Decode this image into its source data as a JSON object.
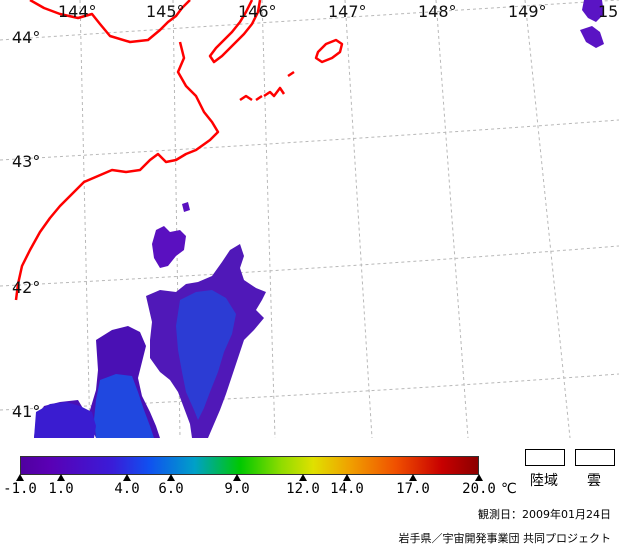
{
  "map": {
    "longitude_labels": [
      "144°",
      "145°",
      "146°",
      "147°",
      "148°",
      "149°",
      "15"
    ],
    "latitude_labels": [
      "44°",
      "43°",
      "42°",
      "41°"
    ],
    "coastline_color": "#ff0000",
    "graticule_color": "#c0c0c0"
  },
  "colorbar": {
    "ticks": [
      "-1.0",
      "1.0",
      "4.0",
      "6.0",
      "9.0",
      "12.0",
      "14.0",
      "17.0",
      "20.0"
    ],
    "unit": "℃",
    "min_color": "#5000a0",
    "max_color": "#8c0000"
  },
  "legend": {
    "land_label": "陸域",
    "cloud_label": "雲"
  },
  "footer": {
    "observation_date": "観測日：2009年01月24日",
    "credit": "岩手県／宇宙開発事業団 共同プロジェクト"
  }
}
